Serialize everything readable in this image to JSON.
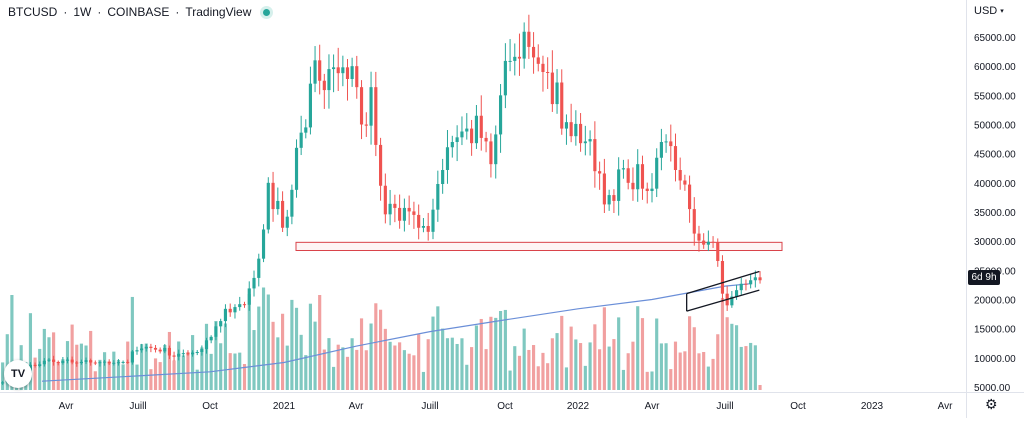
{
  "header": {
    "symbol": "BTCUSD",
    "interval": "1W",
    "exchange": "COINBASE",
    "source": "TradingView",
    "separator": "·"
  },
  "price_axis": {
    "currency": "USD",
    "caret": "▾",
    "labels": [
      "65000.00",
      "60000.00",
      "55000.00",
      "50000.00",
      "45000.00",
      "40000.00",
      "35000.00",
      "30000.00",
      "25000.00",
      "20000.00",
      "15000.00",
      "10000.00",
      "5000.00"
    ],
    "countdown": "6d 9h"
  },
  "time_axis": {
    "labels": [
      "Avr",
      "Juill",
      "Oct",
      "2021",
      "Avr",
      "Juill",
      "Oct",
      "2022",
      "Avr",
      "Juill",
      "Oct",
      "2023",
      "Avr"
    ]
  },
  "logo_text": "TV",
  "settings_icon": "⚙",
  "colors": {
    "up": "#26a69a",
    "down": "#ef5350",
    "up_volume": "#7fc8c0",
    "down_volume": "#f1a0a0",
    "ma_line": "#6b8fd8",
    "resistance_zone": "#d9434a",
    "channel": "#131722"
  },
  "chart_data": {
    "type": "candlestick",
    "interval": "1W",
    "ylim": [
      4000,
      70000
    ],
    "moving_average": [
      {
        "t": "2020-03",
        "v": 6000
      },
      {
        "t": "2020-07",
        "v": 6900
      },
      {
        "t": "2020-10",
        "v": 7600
      },
      {
        "t": "2021-01",
        "v": 9200
      },
      {
        "t": "2021-04",
        "v": 12000
      },
      {
        "t": "2021-07",
        "v": 14500
      },
      {
        "t": "2021-10",
        "v": 16500
      },
      {
        "t": "2022-01",
        "v": 18400
      },
      {
        "t": "2022-04",
        "v": 20000
      },
      {
        "t": "2022-07",
        "v": 22300
      },
      {
        "t": "2022-08",
        "v": 22700
      }
    ],
    "resistance_zone": {
      "from": "2021-01",
      "to": "2022-09",
      "low": 28400,
      "high": 29800
    },
    "channel": {
      "lower": [
        {
          "t": "2022-06",
          "v": 18000
        },
        {
          "t": "2022-08",
          "v": 21600
        }
      ],
      "upper": [
        {
          "t": "2022-06",
          "v": 21000
        },
        {
          "t": "2022-08",
          "v": 24800
        }
      ]
    }
  }
}
